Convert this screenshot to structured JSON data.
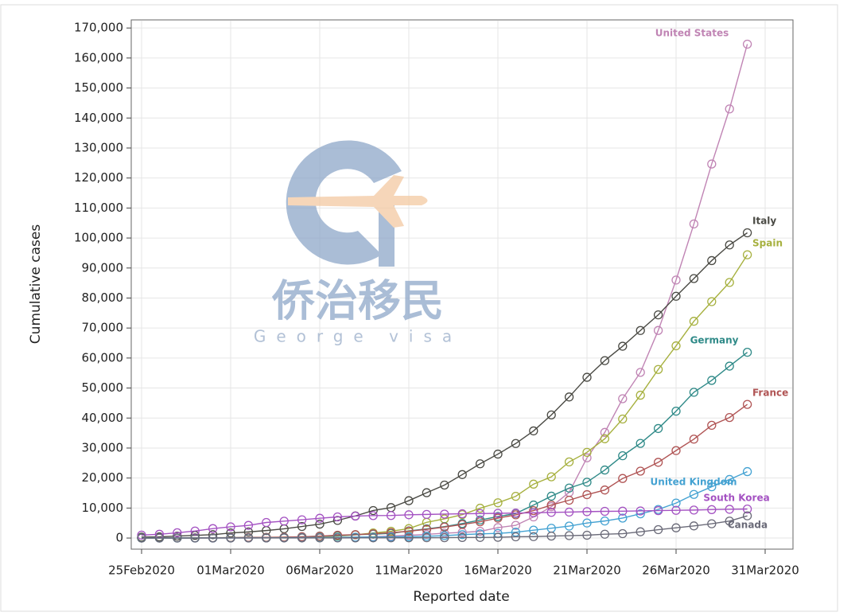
{
  "chart_data": {
    "type": "line",
    "x_label": "Reported date",
    "y_label": "Cumulative cases",
    "annotations": [
      "侨治移民",
      "George visa"
    ],
    "x": [
      "25Feb2020",
      "26Feb2020",
      "27Feb2020",
      "28Feb2020",
      "29Feb2020",
      "01Mar2020",
      "02Mar2020",
      "03Mar2020",
      "04Mar2020",
      "05Mar2020",
      "06Mar2020",
      "07Mar2020",
      "08Mar2020",
      "09Mar2020",
      "10Mar2020",
      "11Mar2020",
      "12Mar2020",
      "13Mar2020",
      "14Mar2020",
      "15Mar2020",
      "16Mar2020",
      "17Mar2020",
      "18Mar2020",
      "19Mar2020",
      "20Mar2020",
      "21Mar2020",
      "22Mar2020",
      "23Mar2020",
      "24Mar2020",
      "25Mar2020",
      "26Mar2020",
      "27Mar2020",
      "28Mar2020",
      "29Mar2020",
      "30Mar2020"
    ],
    "xlim": [
      "25Feb2020",
      "31Mar2020"
    ],
    "xticks": [
      "25Feb2020",
      "01Mar2020",
      "06Mar2020",
      "11Mar2020",
      "16Mar2020",
      "21Mar2020",
      "26Mar2020",
      "31Mar2020"
    ],
    "ylim": [
      -3700,
      172700
    ],
    "yticks": [
      0,
      {
        "value": 10000,
        "label": "10,000"
      },
      {
        "value": 20000,
        "label": "20,000"
      },
      {
        "value": 30000,
        "label": "30,000"
      },
      {
        "value": 40000,
        "label": "40,000"
      },
      {
        "value": 50000,
        "label": "50,000"
      },
      {
        "value": 60000,
        "label": "60,000"
      },
      {
        "value": 70000,
        "label": "70,000"
      },
      {
        "value": 80000,
        "label": "80,000"
      },
      {
        "value": 90000,
        "label": "90,000"
      },
      {
        "value": 100000,
        "label": "100,000"
      },
      {
        "value": 110000,
        "label": "110,000"
      },
      {
        "value": 120000,
        "label": "120,000"
      },
      {
        "value": 130000,
        "label": "130,000"
      },
      {
        "value": 140000,
        "label": "140,000"
      },
      {
        "value": 150000,
        "label": "150,000"
      },
      {
        "value": 160000,
        "label": "160,000"
      },
      {
        "value": 170000,
        "label": "170,000"
      }
    ],
    "grid": true,
    "series": [
      {
        "name": "United States",
        "color": "#c084b4",
        "values": [
          15,
          15,
          15,
          16,
          24,
          30,
          43,
          53,
          80,
          108,
          130,
          213,
          279,
          423,
          647,
          937,
          1215,
          1629,
          1896,
          2234,
          3487,
          4226,
          7038,
          10442,
          15219,
          26747,
          35206,
          46442,
          55231,
          69194,
          85991,
          104686,
          124665,
          143025,
          164610
        ]
      },
      {
        "name": "Italy",
        "color": "#4a4a44",
        "values": [
          322,
          400,
          650,
          888,
          1128,
          1694,
          2036,
          2502,
          3089,
          3858,
          4636,
          5883,
          7375,
          9172,
          10149,
          12462,
          15113,
          17660,
          21157,
          24747,
          27980,
          31506,
          35713,
          41035,
          47021,
          53578,
          59138,
          63927,
          69176,
          74386,
          80589,
          86498,
          92472,
          97689,
          101739
        ]
      },
      {
        "name": "Spain",
        "color": "#a6b03e",
        "values": [
          13,
          15,
          32,
          45,
          84,
          120,
          165,
          222,
          259,
          400,
          500,
          673,
          1073,
          1695,
          2277,
          3146,
          5232,
          6391,
          7798,
          9942,
          11748,
          13910,
          17963,
          20410,
          25374,
          28572,
          33089,
          39673,
          47610,
          56188,
          64059,
          72248,
          78797,
          85195,
          94417
        ]
      },
      {
        "name": "Germany",
        "color": "#2f8a88",
        "values": [
          18,
          21,
          26,
          53,
          66,
          117,
          150,
          188,
          240,
          400,
          639,
          795,
          1112,
          1296,
          1567,
          2369,
          3062,
          3795,
          4838,
          6012,
          7156,
          8198,
          10999,
          13957,
          16662,
          18610,
          22672,
          27436,
          31554,
          36508,
          42288,
          48582,
          52547,
          57298,
          61913
        ]
      },
      {
        "name": "France",
        "color": "#b05454",
        "values": [
          14,
          18,
          38,
          57,
          100,
          130,
          191,
          212,
          285,
          423,
          613,
          949,
          1126,
          1412,
          1784,
          2281,
          2876,
          3661,
          4499,
          5423,
          6633,
          7730,
          9134,
          10995,
          12612,
          14459,
          16018,
          19856,
          22302,
          25233,
          29155,
          32964,
          37575,
          40174,
          44550
        ]
      },
      {
        "name": "United Kingdom",
        "color": "#44a2d2",
        "values": [
          13,
          13,
          15,
          20,
          23,
          36,
          40,
          51,
          87,
          116,
          164,
          209,
          278,
          321,
          383,
          460,
          594,
          798,
          1140,
          1391,
          1543,
          1950,
          2626,
          3269,
          3983,
          5018,
          5683,
          6650,
          8077,
          9529,
          11658,
          14543,
          17089,
          19522,
          22141
        ]
      },
      {
        "name": "South Korea",
        "color": "#a452c2",
        "values": [
          977,
          1261,
          1766,
          2337,
          3150,
          3736,
          4212,
          5186,
          5621,
          6088,
          6593,
          7041,
          7314,
          7478,
          7513,
          7755,
          7869,
          7979,
          8086,
          8162,
          8236,
          8320,
          8413,
          8565,
          8652,
          8799,
          8897,
          8961,
          9037,
          9137,
          9241,
          9332,
          9478,
          9583,
          9661
        ]
      },
      {
        "name": "Canada",
        "color": "#6a6a78",
        "values": [
          10,
          10,
          11,
          13,
          14,
          20,
          24,
          27,
          30,
          33,
          37,
          49,
          54,
          64,
          77,
          79,
          108,
          117,
          193,
          198,
          252,
          415,
          478,
          657,
          800,
          943,
          1277,
          1469,
          2088,
          2790,
          3409,
          4043,
          4757,
          5655,
          7398
        ]
      }
    ]
  }
}
